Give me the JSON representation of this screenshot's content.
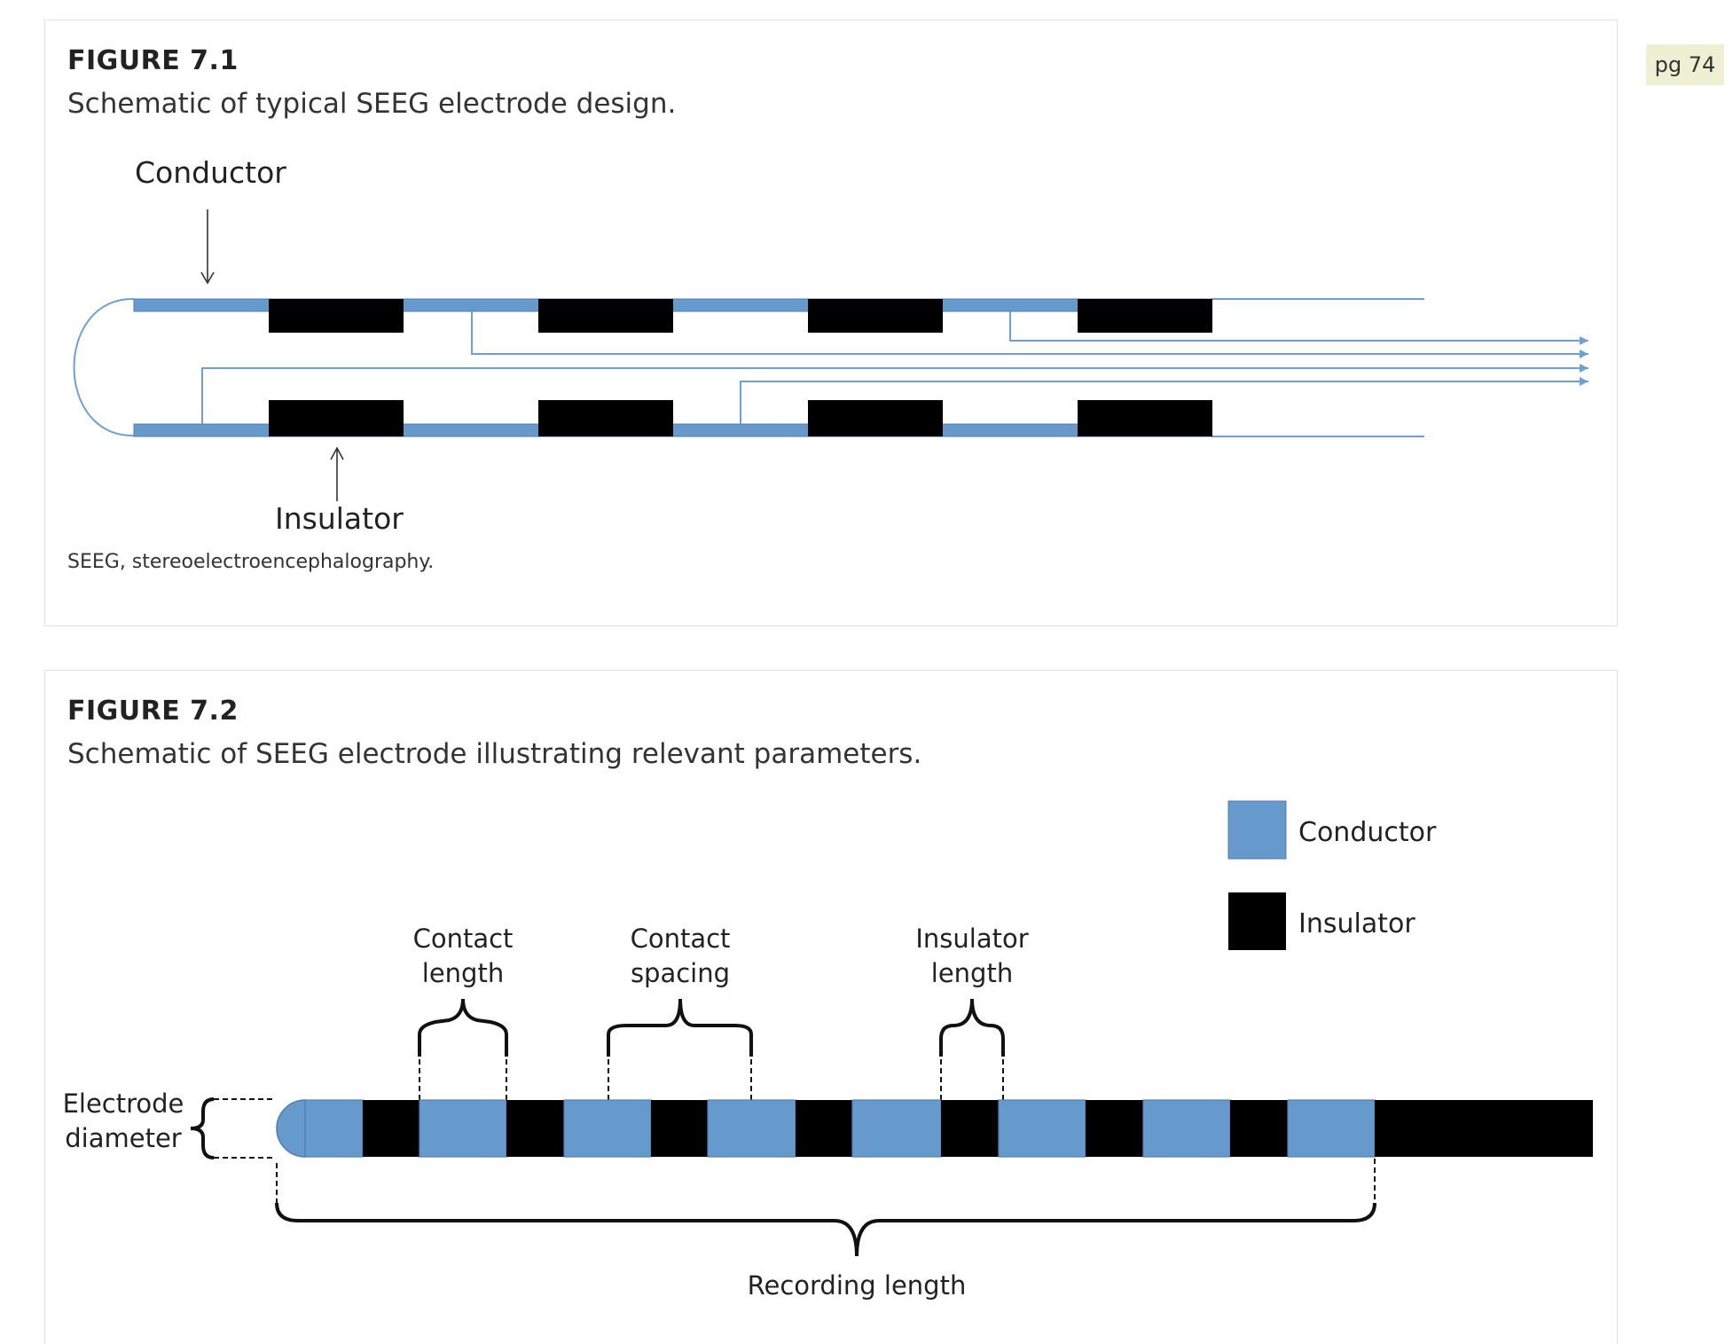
{
  "page_tag": "pg 74",
  "figure1": {
    "label": "FIGURE 7.1",
    "title": "Schematic of typical SEEG electrode design.",
    "labels": {
      "conductor": "Conductor",
      "insulator": "Insulator"
    },
    "note": "SEEG, stereoelectroencephalography."
  },
  "figure2": {
    "label": "FIGURE 7.2",
    "title": "Schematic of SEEG electrode illustrating relevant parameters.",
    "legend": {
      "conductor": "Conductor",
      "insulator": "Insulator"
    },
    "annotations": {
      "contact_length": [
        "Contact",
        "length"
      ],
      "contact_spacing": [
        "Contact",
        "spacing"
      ],
      "insulator_length": [
        "Insulator",
        "length"
      ],
      "electrode_diameter": [
        "Electrode",
        "diameter"
      ],
      "recording_length": "Recording length"
    }
  },
  "colors": {
    "conductor": "#6699cc",
    "insulator": "#000000",
    "wire": "#6e9fd6"
  }
}
